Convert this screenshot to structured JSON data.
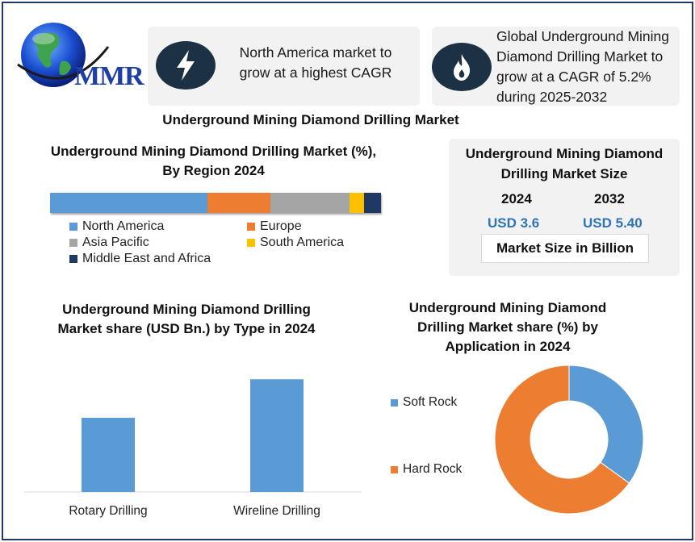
{
  "brand": {
    "logo_text": "MMR"
  },
  "cards": [
    {
      "text": "North America market to grow at a highest CAGR",
      "icon": "lightning-icon"
    },
    {
      "text": "Global Underground Mining Diamond Drilling Market to grow at a CAGR of 5.2% during 2025-2032",
      "icon": "flame-icon"
    }
  ],
  "main_title": "Underground Mining Diamond Drilling Market",
  "market_size": {
    "title": "Underground Mining Diamond Drilling Market Size",
    "years": [
      "2024",
      "2032"
    ],
    "values": [
      "USD 3.6",
      "USD 5.40"
    ],
    "unit_label": "Market Size in Billion"
  },
  "colors": {
    "blue": "#5b9bd5",
    "orange": "#ed7d31",
    "gray": "#a5a5a5",
    "yellow": "#ffc000",
    "navy": "#1f3864",
    "accent_text": "#2e74b5"
  },
  "chart_data": [
    {
      "type": "bar",
      "subtype": "stacked-100",
      "title": "Underground Mining Diamond Drilling Market (%), By Region 2024",
      "series": [
        {
          "name": "North America",
          "value": 47.5,
          "color": "#5b9bd5"
        },
        {
          "name": "Europe",
          "value": 19,
          "color": "#ed7d31"
        },
        {
          "name": "Asia Pacific",
          "value": 24,
          "color": "#a5a5a5"
        },
        {
          "name": "South America",
          "value": 4.5,
          "color": "#ffc000"
        },
        {
          "name": "Middle East and Africa",
          "value": 5,
          "color": "#1f3864"
        }
      ],
      "legend": "bottom"
    },
    {
      "type": "bar",
      "title": "Underground Mining Diamond Drilling Market share (USD Bn.)  by Type in 2024",
      "categories": [
        "Rotary Drilling",
        "Wireline Drilling"
      ],
      "values": [
        1.35,
        2.05
      ],
      "ylim": [
        0,
        2.2
      ],
      "grid": false,
      "color": "#5b9bd5"
    },
    {
      "type": "pie",
      "subtype": "donut",
      "title": "Underground Mining Diamond Drilling Market share (%)  by Application in 2024",
      "series": [
        {
          "name": "Soft Rock",
          "value": 35,
          "color": "#5b9bd5"
        },
        {
          "name": "Hard Rock",
          "value": 65,
          "color": "#ed7d31"
        }
      ],
      "legend": "left"
    }
  ]
}
